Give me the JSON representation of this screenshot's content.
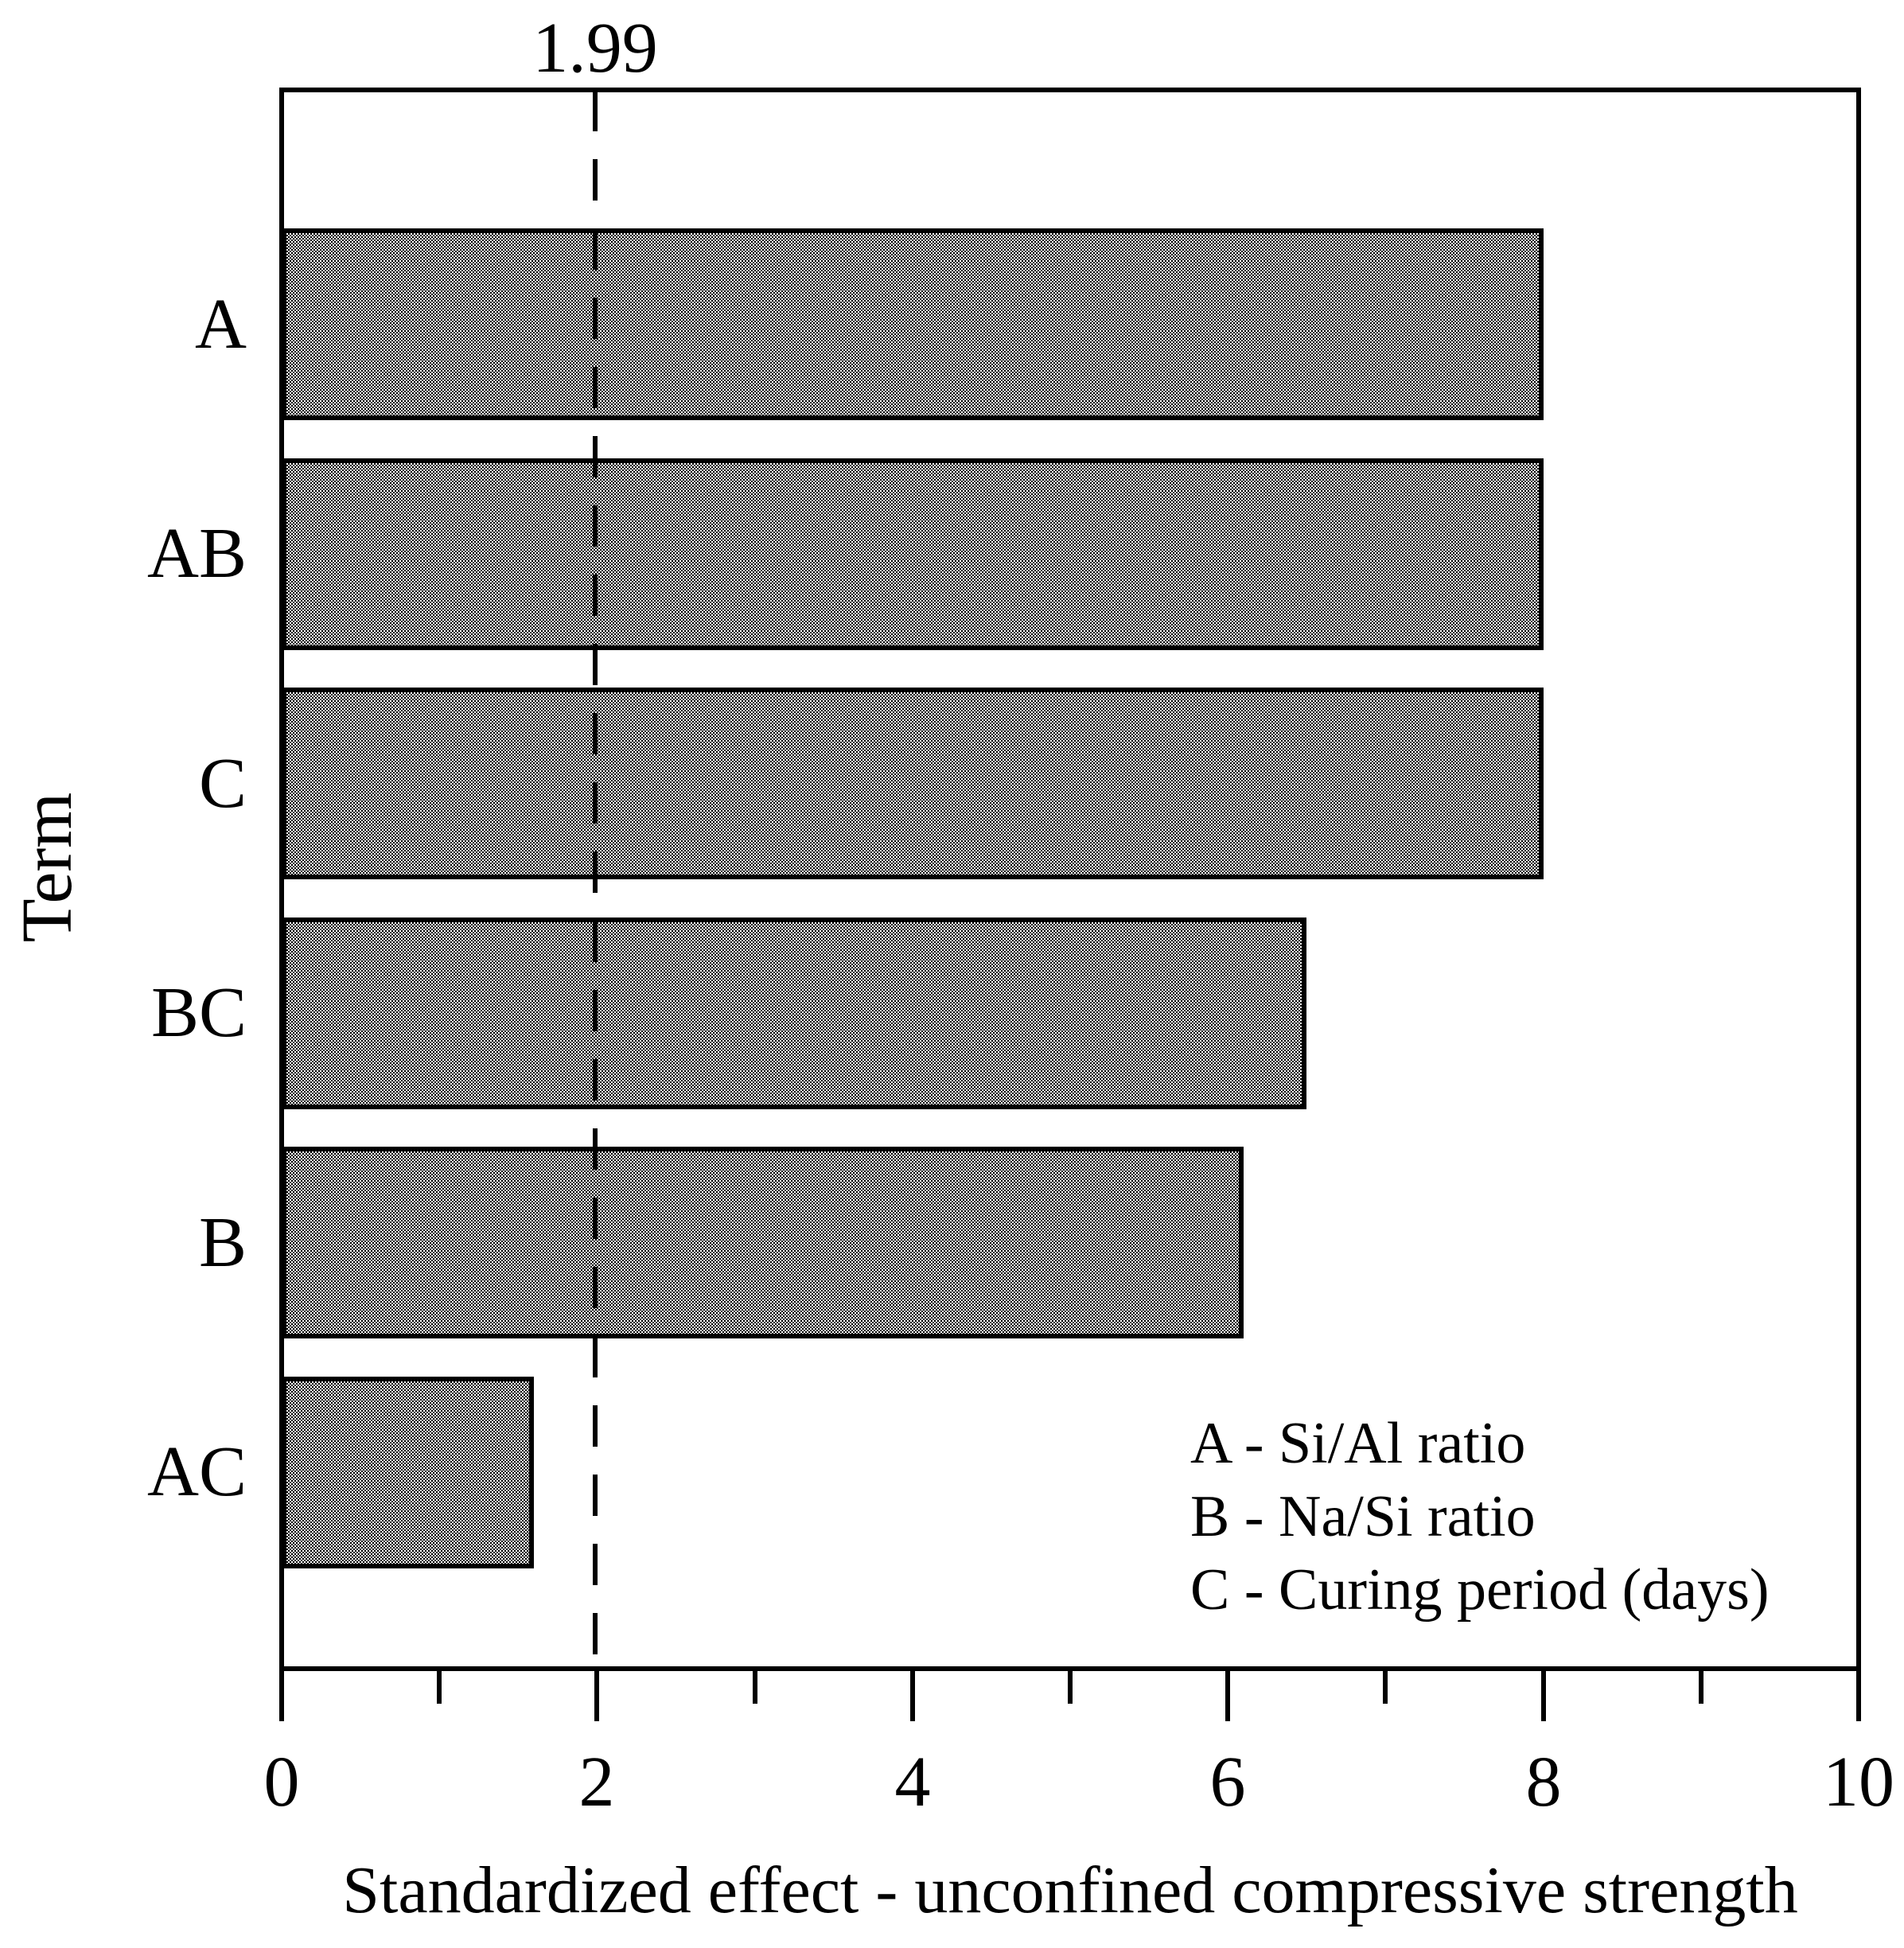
{
  "chart_data": {
    "type": "bar",
    "orientation": "horizontal",
    "categories": [
      "A",
      "AB",
      "C",
      "BC",
      "B",
      "AC"
    ],
    "values": [
      8.0,
      8.0,
      8.0,
      6.5,
      6.1,
      1.6
    ],
    "xlabel": "Standardized effect - unconfined compressive strength",
    "ylabel": "Term",
    "xlim": [
      0,
      10
    ],
    "x_major_ticks": [
      0,
      2,
      4,
      6,
      8,
      10
    ],
    "x_major_tick_labels": [
      "0",
      "2",
      "4",
      "6",
      "8",
      "10"
    ],
    "x_minor_ticks": [
      1,
      3,
      5,
      7,
      9
    ],
    "reference_line": {
      "value": 1.99,
      "label": "1.99",
      "style": "dashed"
    },
    "legend": [
      "A - Si/Al ratio",
      "B - Na/Si ratio",
      "C - Curing period (days)"
    ],
    "legend_position": "inside-bottom-right",
    "grid": false,
    "colors": {
      "bar_fill_average": "#9c9c9c",
      "bar_border": "#000000",
      "axis": "#000000",
      "text": "#000000",
      "background": "#ffffff"
    }
  }
}
